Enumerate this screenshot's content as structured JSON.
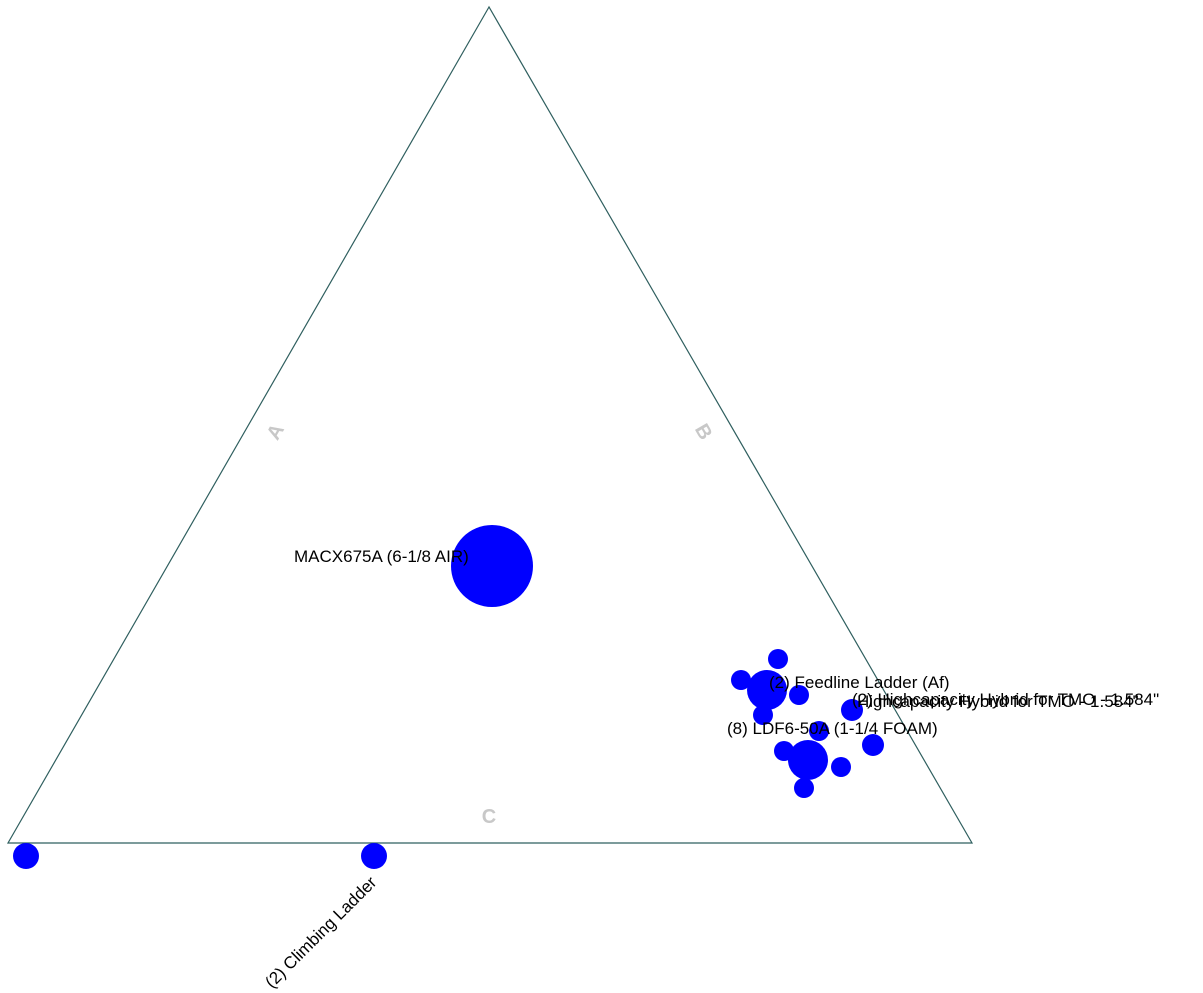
{
  "diagram": {
    "axes": {
      "a": "A",
      "b": "B",
      "c": "C"
    },
    "colors": {
      "triangle": "#2f5f5f",
      "marker": "#0000ff",
      "axis_letter": "#c8c8c8",
      "label": "#000000"
    },
    "labels": {
      "main": "MACX675A (6-1/8 AIR)",
      "feedline": "(2) Feedline Ladder (Af)",
      "hybrid_a": "(2) Highcapacity Hybrid for TMO - 1.584\"",
      "hybrid_b": "Highcapacity Hybrid for TMO - 1.584\"",
      "ldf": "(8) LDF6-50A (1-1/4 FOAM)",
      "climbing": "(2) Climbing Ladder"
    }
  }
}
